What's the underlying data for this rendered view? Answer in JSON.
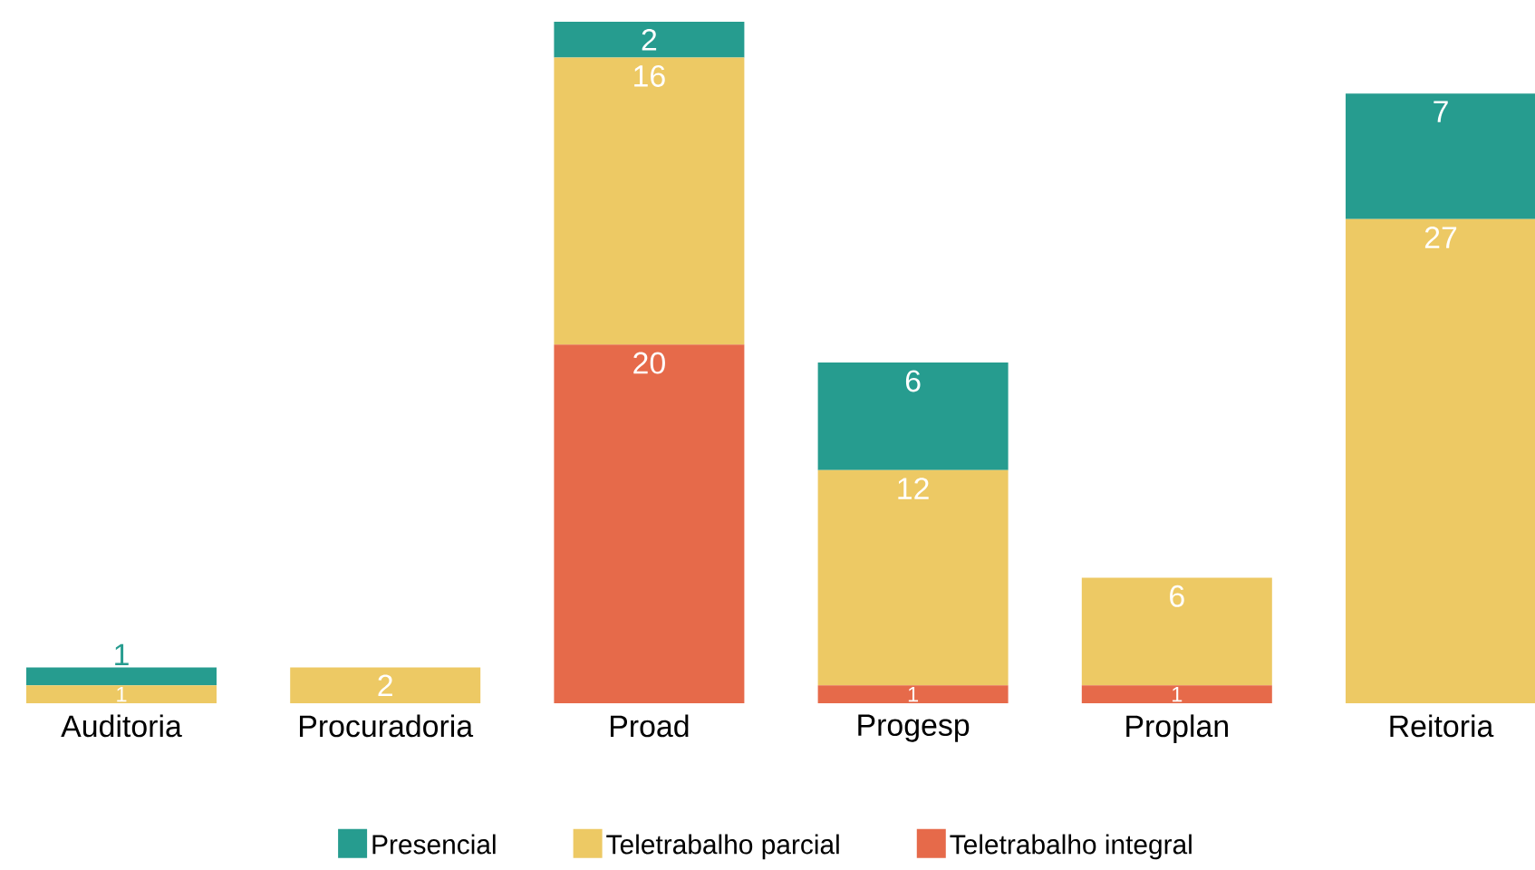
{
  "chart_data": {
    "type": "bar",
    "stacked": true,
    "data_labels": true,
    "legend": "bottom",
    "categories": [
      "Auditoria",
      "Procuradoria",
      "Proad",
      "Progesp",
      "Proplan",
      "Reitoria"
    ],
    "series": [
      {
        "name": "Teletrabalho integral",
        "color": "#e66a4a",
        "values": [
          null,
          null,
          20,
          1,
          1,
          null
        ]
      },
      {
        "name": "Teletrabalho parcial",
        "color": "#edc964",
        "values": [
          1,
          2,
          16,
          12,
          6,
          27
        ]
      },
      {
        "name": "Presencial",
        "color": "#269c8f",
        "values": [
          1,
          null,
          2,
          6,
          null,
          7
        ]
      }
    ]
  }
}
